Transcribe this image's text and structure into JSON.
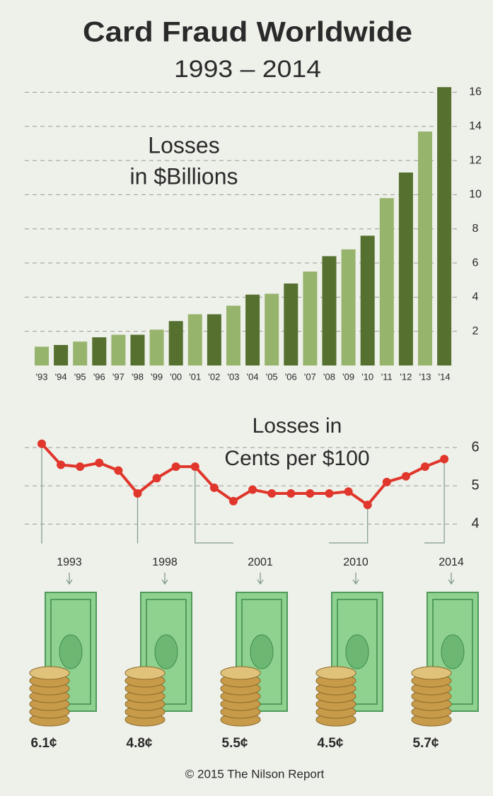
{
  "title": "Card Fraud Worldwide",
  "subtitle": "1993 – 2014",
  "source": "© 2015 The Nilson Report",
  "chart_data": [
    {
      "type": "bar",
      "annotation": [
        "Losses",
        "in $Billions"
      ],
      "categories": [
        "'93",
        "'94",
        "'95",
        "'96",
        "'97",
        "'98",
        "'99",
        "'00",
        "'01",
        "'02",
        "'03",
        "'04",
        "'05",
        "'06",
        "'07",
        "'08",
        "'09",
        "'10",
        "'11",
        "'12",
        "'13",
        "'14"
      ],
      "values": [
        1.1,
        1.2,
        1.4,
        1.65,
        1.8,
        1.8,
        2.1,
        2.6,
        3.0,
        3.0,
        3.5,
        4.15,
        4.2,
        4.8,
        5.5,
        6.4,
        6.8,
        7.6,
        9.8,
        11.3,
        13.7,
        16.3
      ],
      "colors": [
        "#97b46d",
        "#55702f"
      ],
      "ylim": [
        0,
        16.6
      ],
      "yticks": [
        2,
        4,
        6,
        8,
        10,
        12,
        14,
        16
      ],
      "grid": true
    },
    {
      "type": "line",
      "annotation": [
        "Losses in",
        "Cents per $100"
      ],
      "categories": [
        "1993",
        null,
        null,
        null,
        null,
        "1998",
        null,
        null,
        "2001",
        null,
        null,
        null,
        null,
        null,
        null,
        null,
        null,
        "2010",
        null,
        null,
        null,
        "2014"
      ],
      "values": [
        6.1,
        5.55,
        5.5,
        5.6,
        5.4,
        4.8,
        5.2,
        5.5,
        5.5,
        4.95,
        4.6,
        4.9,
        4.8,
        4.8,
        4.8,
        4.8,
        4.85,
        4.5,
        5.1,
        5.25,
        5.5,
        5.7
      ],
      "value_labels": [
        "6.1¢",
        null,
        null,
        null,
        null,
        "4.8¢",
        null,
        null,
        "5.5¢",
        null,
        null,
        null,
        null,
        null,
        null,
        null,
        null,
        "4.5¢",
        null,
        null,
        null,
        "5.7¢"
      ],
      "color": "#e0362b",
      "label_color": "#c9302a",
      "ylim": [
        3.6,
        7
      ],
      "yticks": [
        4,
        5,
        6
      ],
      "grid": true
    }
  ]
}
